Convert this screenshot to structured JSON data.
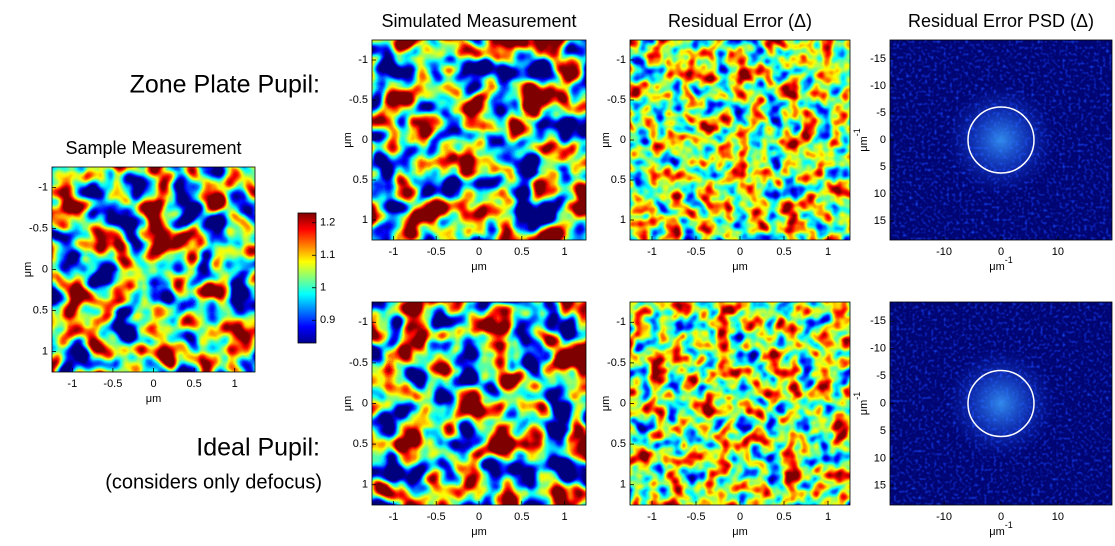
{
  "labels": {
    "zone_plate": "Zone Plate Pupil:",
    "ideal": "Ideal Pupil:",
    "ideal_note": "(considers only defocus)"
  },
  "colorbar": {
    "ylim": [
      0.83,
      1.23
    ],
    "yticks": [
      0.9,
      1,
      1.1,
      1.2
    ]
  },
  "panels": [
    {
      "kind": "map",
      "title": "Sample Measurement",
      "xlim": [
        -1.25,
        1.25
      ],
      "ylim": [
        1.25,
        -1.25
      ],
      "xticks": [
        -1,
        -0.5,
        0,
        0.5,
        1
      ],
      "yticks": [
        -1,
        -0.5,
        0,
        0.5,
        1
      ],
      "xlabel": {
        "text": "μm"
      },
      "ylabel": {
        "text": "μm"
      }
    },
    {
      "kind": "map",
      "title": "Simulated Measurement",
      "xlim": [
        -1.25,
        1.25
      ],
      "ylim": [
        1.25,
        -1.25
      ],
      "xticks": [
        -1,
        -0.5,
        0,
        0.5,
        1
      ],
      "yticks": [
        -1,
        -0.5,
        0,
        0.5,
        1
      ],
      "xlabel": {
        "text": "μm"
      },
      "ylabel": {
        "text": "μm"
      }
    },
    {
      "kind": "residual",
      "title": "Residual Error (Δ)",
      "xlim": [
        -1.25,
        1.25
      ],
      "ylim": [
        1.25,
        -1.25
      ],
      "xticks": [
        -1,
        -0.5,
        0,
        0.5,
        1
      ],
      "yticks": [
        -1,
        -0.5,
        0,
        0.5,
        1
      ],
      "xlabel": {
        "text": "μm"
      },
      "ylabel": {
        "text": "μm"
      }
    },
    {
      "kind": "psd",
      "title": "Residual Error PSD (Δ)",
      "xlim": [
        -19.5,
        19.5
      ],
      "ylim": [
        18.5,
        -18.5
      ],
      "xticks": [
        -10,
        0,
        10
      ],
      "yticks": [
        -15,
        -10,
        -5,
        0,
        5,
        10,
        15
      ],
      "xlabel": {
        "text": "μm",
        "superscript": "-1"
      },
      "ylabel": {
        "text": "μm",
        "superscript": "-1"
      }
    },
    {
      "kind": "map",
      "xlim": [
        -1.25,
        1.25
      ],
      "ylim": [
        1.25,
        -1.25
      ],
      "xticks": [
        -1,
        -0.5,
        0,
        0.5,
        1
      ],
      "yticks": [
        -1,
        -0.5,
        0,
        0.5,
        1
      ],
      "xlabel": {
        "text": "μm"
      },
      "ylabel": {
        "text": "μm"
      }
    },
    {
      "kind": "residual",
      "xlim": [
        -1.25,
        1.25
      ],
      "ylim": [
        1.25,
        -1.25
      ],
      "xticks": [
        -1,
        -0.5,
        0,
        0.5,
        1
      ],
      "yticks": [
        -1,
        -0.5,
        0,
        0.5,
        1
      ],
      "xlabel": {
        "text": "μm"
      },
      "ylabel": {
        "text": "μm"
      }
    },
    {
      "kind": "psd",
      "xlim": [
        -19.5,
        19.5
      ],
      "ylim": [
        18.5,
        -18.5
      ],
      "xticks": [
        -10,
        0,
        10
      ],
      "yticks": [
        -15,
        -10,
        -5,
        0,
        5,
        10,
        15
      ],
      "xlabel": {
        "text": "μm",
        "superscript": "-1"
      },
      "ylabel": {
        "text": "μm",
        "superscript": "-1"
      }
    }
  ]
}
